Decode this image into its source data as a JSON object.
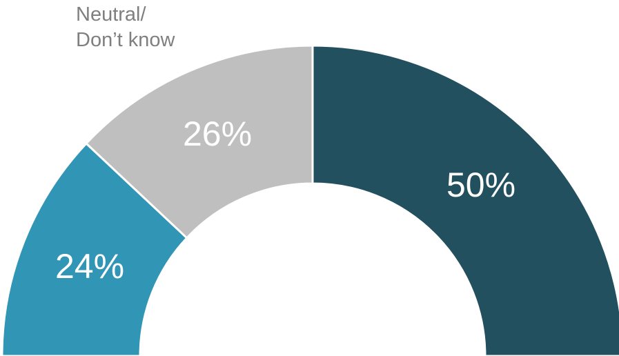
{
  "chart_data": {
    "type": "pie",
    "style": "semi-donut",
    "slices": [
      {
        "value": 24,
        "label": "24%",
        "color": "#3195b5"
      },
      {
        "value": 26,
        "label": "26%",
        "color": "#bfbfbf",
        "category": "Neutral/ Don’t know"
      },
      {
        "value": 50,
        "label": "50%",
        "color": "#23505f"
      }
    ],
    "annotations": [
      {
        "lines": [
          "Neutral/",
          "Don’t know"
        ],
        "color": "#7f7f7f"
      }
    ]
  }
}
